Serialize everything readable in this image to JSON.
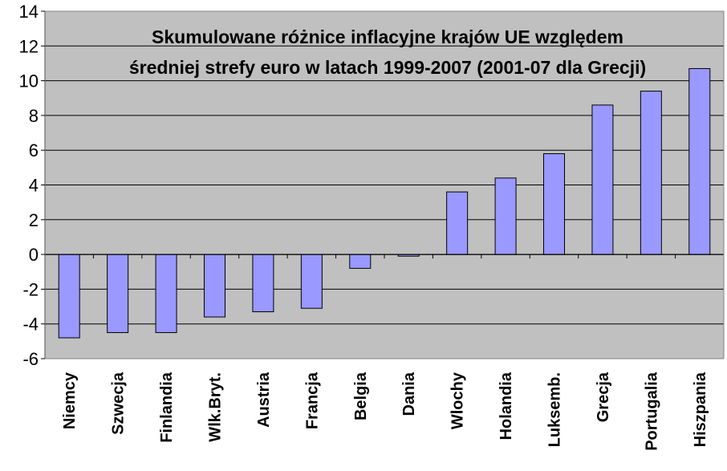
{
  "chart_data": {
    "type": "bar",
    "title_lines": [
      "Skumulowane różnice inflacyjne krajów UE względem",
      "średniej strefy euro w latach 1999-2007 (2001-07 dla Grecji)"
    ],
    "categories": [
      "Niemcy",
      "Szwecja",
      "Finlandia",
      "Wlk.Bryt.",
      "Austria",
      "Francja",
      "Belgia",
      "Dania",
      "Wlochy",
      "Holandia",
      "Luksemb.",
      "Grecja",
      "Portugalia",
      "Hiszpania"
    ],
    "values": [
      -4.8,
      -4.5,
      -4.5,
      -3.6,
      -3.3,
      -3.1,
      -0.8,
      -0.1,
      3.6,
      4.4,
      5.8,
      8.6,
      9.4,
      10.7
    ],
    "xlabel": "",
    "ylabel": "",
    "ylim": [
      -6,
      14
    ],
    "yticks": [
      "-6",
      "-4",
      "-2",
      "0",
      "2",
      "4",
      "6",
      "8",
      "10",
      "12",
      "14"
    ],
    "grid": true,
    "legend": "none",
    "colors": {
      "plot_background": "#c0c0c0",
      "bar_fill": "#9999ff",
      "bar_stroke": "#000000",
      "grid": "#000000"
    }
  }
}
